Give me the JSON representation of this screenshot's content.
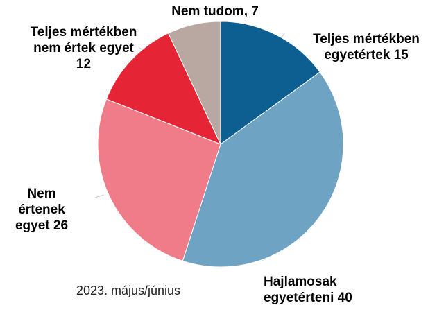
{
  "chart_data": {
    "type": "pie",
    "values": [
      15,
      40,
      26,
      12,
      7
    ],
    "value_labels": [
      "Teljes mértékben egyetértek 15",
      "Hajlamosak egyetérteni 40",
      "Nem értenek egyet 26",
      "Teljes mértékben nem értek egyet 12",
      "Nem tudom, 7"
    ],
    "colors": [
      "#0e5f91",
      "#6fa3c4",
      "#f07b89",
      "#e52535",
      "#b8a8a1"
    ],
    "note": "2023. május/június"
  }
}
